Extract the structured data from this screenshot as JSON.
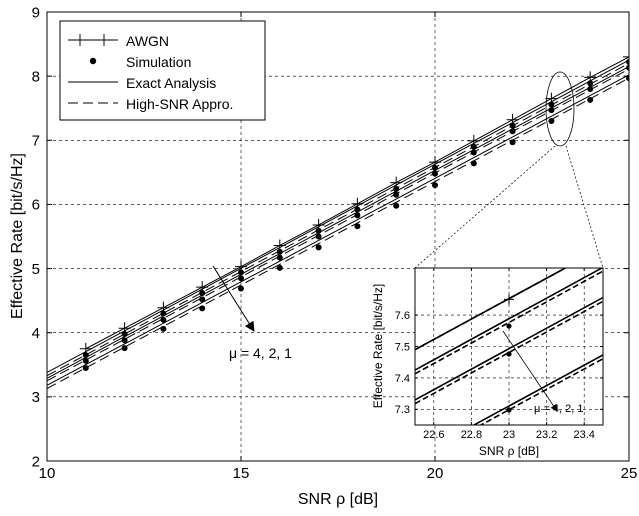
{
  "chart_data": [
    {
      "type": "line",
      "xlabel": "SNR ρ [dB]",
      "ylabel": "Effective Rate [bit/s/Hz]",
      "xlim": [
        10,
        25
      ],
      "ylim": [
        2,
        9
      ],
      "xticks": [
        10,
        15,
        20,
        25
      ],
      "yticks": [
        2,
        3,
        4,
        5,
        6,
        7,
        8,
        9
      ],
      "grid": true,
      "legend_position": "top-left",
      "legend": [
        "AWGN",
        "Simulation",
        "Exact Analysis",
        "High-SNR Appro."
      ],
      "annotation": "μ = 4, 2, 1",
      "series": [
        {
          "name": "AWGN",
          "style": "plus-line",
          "x": [
            11,
            12,
            13,
            14,
            15,
            16,
            17,
            18,
            19,
            20,
            21,
            22,
            23,
            24,
            25
          ],
          "values": [
            3.75,
            4.07,
            4.39,
            4.71,
            5.03,
            5.36,
            5.68,
            6.01,
            6.34,
            6.66,
            6.99,
            7.32,
            7.65,
            7.98,
            8.3
          ]
        },
        {
          "style": "solid",
          "x": [
            10,
            25
          ],
          "values": [
            3.38,
            8.25
          ]
        },
        {
          "style": "dashed",
          "x": [
            10,
            25
          ],
          "values": [
            3.33,
            8.2
          ]
        },
        {
          "style": "dots",
          "x": [
            11,
            12,
            13,
            14,
            15,
            16,
            17,
            18,
            19,
            20,
            21,
            22,
            23,
            24,
            25
          ],
          "values": [
            3.65,
            3.98,
            4.3,
            4.62,
            4.94,
            5.26,
            5.59,
            5.92,
            6.24,
            6.57,
            6.9,
            7.23,
            7.56,
            7.89,
            8.22
          ]
        },
        {
          "style": "solid",
          "x": [
            10,
            25
          ],
          "values": [
            3.29,
            8.15
          ]
        },
        {
          "style": "dashed",
          "x": [
            10,
            25
          ],
          "values": [
            3.25,
            8.11
          ]
        },
        {
          "style": "dots",
          "x": [
            11,
            12,
            13,
            14,
            15,
            16,
            17,
            18,
            19,
            20,
            21,
            22,
            23,
            24,
            25
          ],
          "values": [
            3.56,
            3.88,
            4.2,
            4.52,
            4.85,
            5.17,
            5.5,
            5.83,
            6.15,
            6.48,
            6.81,
            7.14,
            7.47,
            7.8,
            8.13
          ]
        },
        {
          "style": "solid",
          "x": [
            10,
            25
          ],
          "values": [
            3.18,
            8.02
          ]
        },
        {
          "style": "dashed",
          "x": [
            10,
            25
          ],
          "values": [
            3.13,
            7.97
          ]
        },
        {
          "style": "dots",
          "x": [
            11,
            12,
            13,
            14,
            15,
            16,
            17,
            18,
            19,
            20,
            21,
            22,
            23,
            24,
            25
          ],
          "values": [
            3.45,
            3.76,
            4.06,
            4.38,
            4.69,
            5.01,
            5.33,
            5.66,
            5.98,
            6.3,
            6.64,
            6.97,
            7.3,
            7.63,
            7.97
          ]
        }
      ]
    },
    {
      "type": "line",
      "xlabel": "SNR ρ [dB]",
      "ylabel": "Effective Rate [bit/s/Hz]",
      "xlim": [
        22.5,
        23.5
      ],
      "ylim": [
        7.25,
        7.75
      ],
      "xticks": [
        22.6,
        22.8,
        23,
        23.2,
        23.4
      ],
      "xtick_labels": [
        "22.6",
        "22.8",
        "23",
        "23.2",
        "23.4"
      ],
      "yticks": [
        7.3,
        7.4,
        7.5,
        7.6
      ],
      "ytick_labels": [
        "7.3",
        "7.4",
        "7.5",
        "7.6"
      ],
      "grid": true,
      "annotation": "μ = 4, 2, 1",
      "series": [
        {
          "style": "solid",
          "x": [
            22.5,
            23.5
          ],
          "values": [
            7.49,
            7.815
          ]
        },
        {
          "style": "dashed",
          "x": [
            22.5,
            23.5
          ],
          "values": [
            7.49,
            7.815
          ]
        },
        {
          "style": "plus",
          "x": [
            23
          ],
          "values": [
            7.65
          ]
        },
        {
          "style": "solid",
          "x": [
            22.5,
            23.5
          ],
          "values": [
            7.425,
            7.752
          ]
        },
        {
          "style": "dashed",
          "x": [
            22.5,
            23.5
          ],
          "values": [
            7.413,
            7.74
          ]
        },
        {
          "style": "dots",
          "x": [
            23
          ],
          "values": [
            7.565
          ]
        },
        {
          "style": "solid",
          "x": [
            22.5,
            23.5
          ],
          "values": [
            7.33,
            7.656
          ]
        },
        {
          "style": "dashed",
          "x": [
            22.5,
            23.5
          ],
          "values": [
            7.318,
            7.644
          ]
        },
        {
          "style": "dots",
          "x": [
            23
          ],
          "values": [
            7.476
          ]
        },
        {
          "style": "solid",
          "x": [
            22.5,
            23.5
          ],
          "values": [
            7.148,
            7.473
          ]
        },
        {
          "style": "dashed",
          "x": [
            22.5,
            23.5
          ],
          "values": [
            7.136,
            7.461
          ]
        },
        {
          "style": "dots",
          "x": [
            23
          ],
          "values": [
            7.298
          ]
        }
      ]
    }
  ]
}
